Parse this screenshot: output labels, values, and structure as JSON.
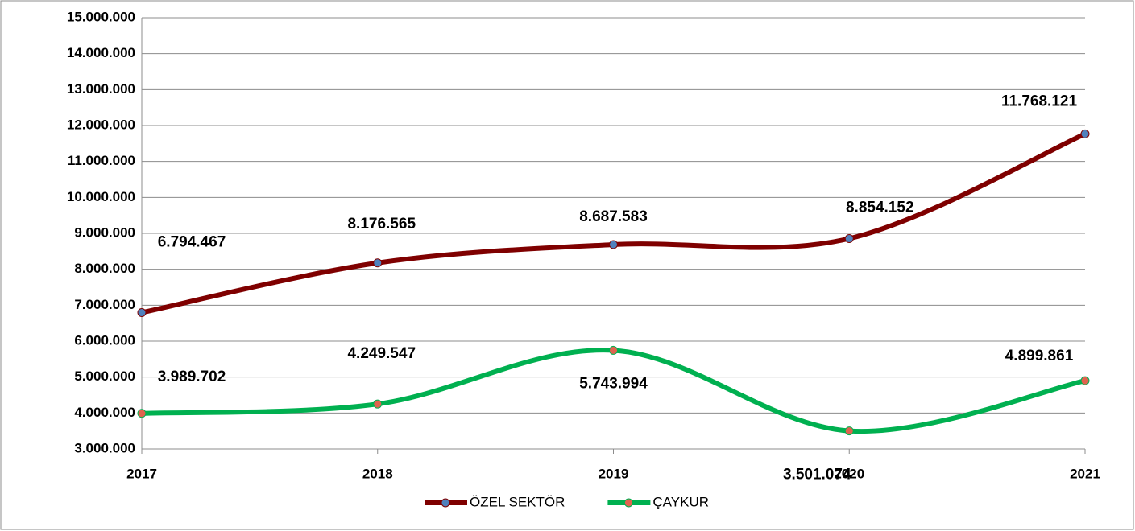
{
  "chart_data": {
    "type": "line",
    "categories": [
      "2017",
      "2018",
      "2019",
      "2020",
      "2021"
    ],
    "series": [
      {
        "name": "ÖZEL SEKTÖR",
        "color": "#7f0000",
        "marker_color": "#4f81bd",
        "values": [
          6794467,
          8176565,
          8687583,
          8854152,
          11768121
        ],
        "value_labels": [
          "6.794.467",
          "8.176.565",
          "8.687.583",
          "8.854.152",
          "11.768.121"
        ]
      },
      {
        "name": "ÇAYKUR",
        "color": "#00b050",
        "marker_color": "#e0634f",
        "values": [
          3989702,
          4249547,
          5743994,
          3501074,
          4899861
        ],
        "value_labels": [
          "3.989.702",
          "4.249.547",
          "5.743.994",
          "3.501.074",
          "4.899.861"
        ]
      }
    ],
    "ylim": [
      3000000,
      15000000
    ],
    "yticks": [
      {
        "value": 3000000,
        "label": "3.000.000"
      },
      {
        "value": 4000000,
        "label": "4.000.000"
      },
      {
        "value": 5000000,
        "label": "5.000.000"
      },
      {
        "value": 6000000,
        "label": "6.000.000"
      },
      {
        "value": 7000000,
        "label": "7.000.000"
      },
      {
        "value": 8000000,
        "label": "8.000.000"
      },
      {
        "value": 9000000,
        "label": "9.000.000"
      },
      {
        "value": 10000000,
        "label": "10.000.000"
      },
      {
        "value": 11000000,
        "label": "11.000.000"
      },
      {
        "value": 12000000,
        "label": "12.000.000"
      },
      {
        "value": 13000000,
        "label": "13.000.000"
      },
      {
        "value": 14000000,
        "label": "14.000.000"
      },
      {
        "value": 15000000,
        "label": "15.000.000"
      }
    ],
    "grid": true,
    "smooth": true,
    "legend": "bottom"
  }
}
